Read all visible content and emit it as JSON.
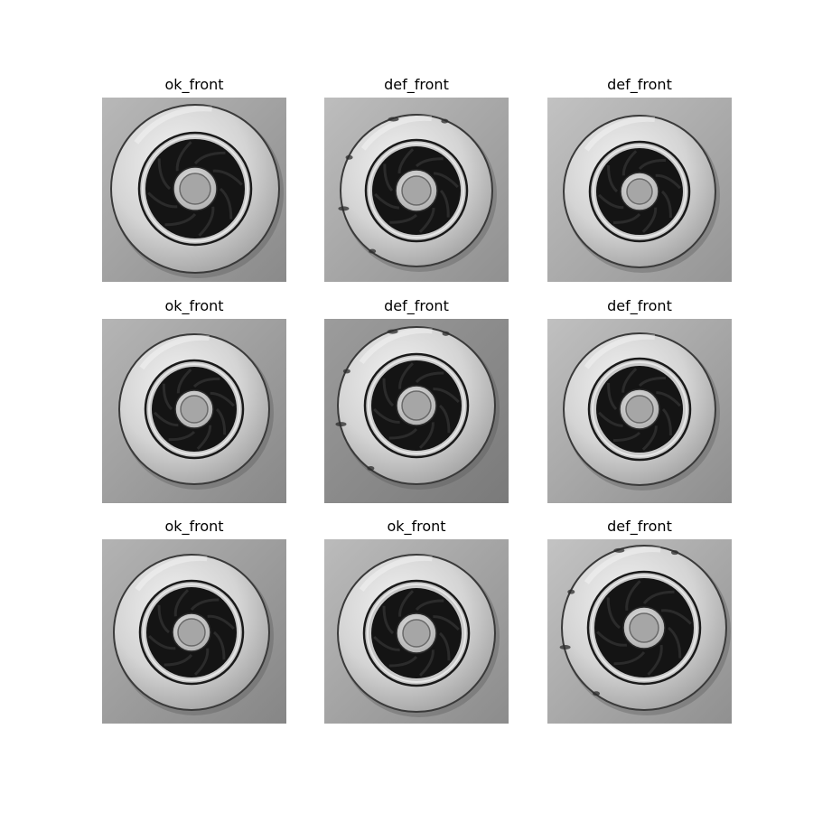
{
  "images": [
    {
      "label": "ok_front"
    },
    {
      "label": "def_front"
    },
    {
      "label": "def_front"
    },
    {
      "label": "ok_front"
    },
    {
      "label": "def_front"
    },
    {
      "label": "def_front"
    },
    {
      "label": "ok_front"
    },
    {
      "label": "ok_front"
    },
    {
      "label": "def_front"
    }
  ]
}
